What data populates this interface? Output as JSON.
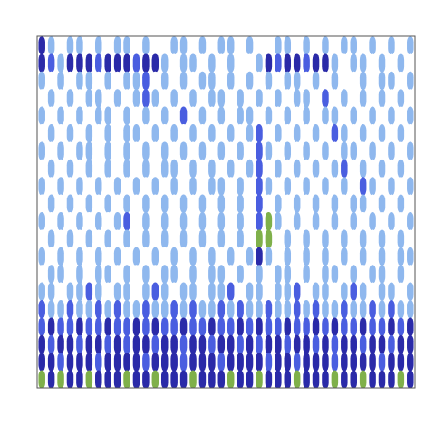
{
  "chart_data": {
    "type": "heatmap",
    "tick_labels": false,
    "cells": [
      [
        3,
        1,
        0,
        1,
        1,
        0,
        1,
        0,
        1,
        1,
        0,
        1,
        0,
        0,
        1,
        1,
        0,
        1,
        0,
        1,
        1,
        0,
        1,
        0,
        0,
        1,
        1,
        0,
        1,
        0,
        1,
        0,
        1,
        1,
        0,
        1,
        0,
        1,
        0,
        1
      ],
      [
        3,
        2,
        1,
        3,
        3,
        3,
        2,
        3,
        3,
        3,
        2,
        3,
        3,
        1,
        0,
        1,
        1,
        0,
        1,
        0,
        1,
        0,
        0,
        1,
        3,
        2,
        3,
        3,
        2,
        3,
        3,
        1,
        0,
        1,
        1,
        0,
        1,
        0,
        1,
        0
      ],
      [
        1,
        0,
        1,
        0,
        1,
        1,
        0,
        1,
        0,
        1,
        1,
        2,
        0,
        1,
        0,
        1,
        0,
        1,
        1,
        0,
        1,
        0,
        1,
        0,
        1,
        0,
        1,
        1,
        0,
        1,
        0,
        1,
        0,
        0,
        1,
        0,
        1,
        1,
        0,
        1
      ],
      [
        0,
        1,
        0,
        1,
        0,
        1,
        1,
        0,
        1,
        0,
        1,
        2,
        1,
        0,
        1,
        0,
        1,
        0,
        1,
        1,
        0,
        1,
        0,
        1,
        0,
        1,
        0,
        1,
        1,
        0,
        2,
        0,
        1,
        0,
        1,
        0,
        1,
        0,
        1,
        0
      ],
      [
        1,
        0,
        1,
        0,
        1,
        0,
        1,
        1,
        0,
        1,
        0,
        1,
        0,
        1,
        0,
        2,
        0,
        1,
        0,
        1,
        0,
        1,
        1,
        0,
        1,
        0,
        1,
        0,
        1,
        0,
        1,
        1,
        0,
        1,
        0,
        1,
        0,
        1,
        0,
        1
      ],
      [
        0,
        1,
        0,
        1,
        0,
        1,
        0,
        1,
        0,
        1,
        1,
        0,
        1,
        0,
        1,
        0,
        1,
        0,
        1,
        0,
        1,
        0,
        1,
        2,
        0,
        1,
        0,
        1,
        0,
        1,
        0,
        2,
        1,
        0,
        1,
        0,
        1,
        0,
        1,
        0
      ],
      [
        1,
        0,
        1,
        0,
        1,
        1,
        0,
        1,
        0,
        1,
        0,
        1,
        0,
        1,
        0,
        1,
        0,
        1,
        0,
        1,
        0,
        1,
        0,
        2,
        1,
        0,
        1,
        0,
        1,
        0,
        1,
        0,
        1,
        1,
        0,
        1,
        0,
        1,
        0,
        1
      ],
      [
        0,
        1,
        0,
        1,
        0,
        1,
        0,
        1,
        0,
        1,
        0,
        1,
        0,
        1,
        1,
        0,
        1,
        0,
        1,
        0,
        1,
        0,
        1,
        2,
        0,
        1,
        0,
        1,
        0,
        1,
        0,
        1,
        2,
        0,
        1,
        0,
        1,
        0,
        1,
        0
      ],
      [
        1,
        0,
        1,
        0,
        1,
        0,
        1,
        0,
        1,
        0,
        1,
        0,
        1,
        0,
        1,
        0,
        1,
        0,
        1,
        1,
        0,
        1,
        0,
        2,
        1,
        0,
        1,
        0,
        1,
        0,
        1,
        0,
        1,
        0,
        2,
        1,
        0,
        1,
        0,
        1
      ],
      [
        0,
        1,
        0,
        1,
        0,
        1,
        0,
        1,
        0,
        1,
        0,
        1,
        0,
        1,
        0,
        1,
        0,
        1,
        0,
        1,
        0,
        1,
        0,
        2,
        0,
        1,
        0,
        1,
        0,
        1,
        0,
        1,
        0,
        1,
        1,
        0,
        1,
        0,
        1,
        0
      ],
      [
        1,
        0,
        1,
        0,
        1,
        0,
        1,
        0,
        1,
        2,
        0,
        1,
        0,
        1,
        0,
        1,
        0,
        1,
        0,
        1,
        0,
        1,
        0,
        2,
        4,
        1,
        0,
        1,
        0,
        1,
        0,
        1,
        0,
        1,
        0,
        1,
        0,
        1,
        0,
        1
      ],
      [
        0,
        1,
        0,
        1,
        0,
        1,
        0,
        1,
        0,
        1,
        0,
        1,
        0,
        1,
        0,
        1,
        0,
        1,
        0,
        1,
        0,
        1,
        0,
        4,
        4,
        0,
        1,
        0,
        1,
        0,
        1,
        0,
        1,
        0,
        1,
        0,
        1,
        0,
        1,
        0
      ],
      [
        1,
        0,
        1,
        0,
        1,
        0,
        1,
        0,
        1,
        0,
        1,
        0,
        1,
        0,
        1,
        0,
        1,
        0,
        1,
        0,
        1,
        0,
        1,
        3,
        1,
        0,
        1,
        0,
        1,
        0,
        1,
        0,
        1,
        0,
        1,
        0,
        1,
        0,
        1,
        1
      ],
      [
        0,
        1,
        1,
        0,
        1,
        0,
        1,
        1,
        0,
        1,
        0,
        1,
        0,
        1,
        1,
        0,
        1,
        0,
        1,
        1,
        0,
        1,
        0,
        1,
        0,
        1,
        1,
        0,
        1,
        0,
        1,
        1,
        0,
        1,
        0,
        1,
        1,
        0,
        1,
        0
      ],
      [
        1,
        1,
        0,
        1,
        1,
        2,
        1,
        0,
        1,
        1,
        0,
        1,
        2,
        1,
        0,
        1,
        1,
        0,
        1,
        1,
        2,
        0,
        1,
        1,
        0,
        1,
        1,
        2,
        0,
        1,
        1,
        0,
        1,
        2,
        1,
        0,
        1,
        1,
        0,
        1
      ],
      [
        2,
        1,
        1,
        2,
        1,
        1,
        2,
        1,
        2,
        1,
        1,
        2,
        1,
        1,
        2,
        1,
        2,
        1,
        1,
        2,
        1,
        2,
        1,
        1,
        2,
        1,
        1,
        2,
        1,
        2,
        1,
        1,
        2,
        1,
        1,
        2,
        1,
        2,
        1,
        1
      ],
      [
        2,
        3,
        2,
        2,
        3,
        2,
        2,
        3,
        2,
        2,
        3,
        2,
        3,
        2,
        2,
        3,
        2,
        2,
        3,
        2,
        2,
        3,
        2,
        3,
        2,
        2,
        3,
        2,
        2,
        3,
        2,
        3,
        2,
        2,
        3,
        2,
        2,
        3,
        2,
        3
      ],
      [
        3,
        2,
        3,
        3,
        2,
        3,
        3,
        2,
        3,
        2,
        3,
        3,
        2,
        3,
        3,
        2,
        3,
        3,
        2,
        3,
        3,
        2,
        3,
        2,
        3,
        3,
        2,
        3,
        3,
        2,
        3,
        2,
        3,
        3,
        2,
        3,
        3,
        2,
        3,
        3
      ],
      [
        3,
        3,
        2,
        3,
        3,
        3,
        2,
        3,
        3,
        3,
        3,
        2,
        3,
        3,
        3,
        2,
        3,
        3,
        3,
        2,
        3,
        3,
        3,
        3,
        2,
        3,
        3,
        2,
        3,
        3,
        3,
        2,
        3,
        3,
        3,
        3,
        2,
        3,
        3,
        3
      ],
      [
        4,
        3,
        4,
        3,
        3,
        4,
        3,
        3,
        3,
        4,
        3,
        3,
        4,
        3,
        3,
        3,
        4,
        3,
        3,
        3,
        4,
        3,
        3,
        4,
        3,
        3,
        3,
        4,
        3,
        3,
        3,
        4,
        3,
        3,
        4,
        3,
        3,
        3,
        4,
        3
      ]
    ]
  }
}
